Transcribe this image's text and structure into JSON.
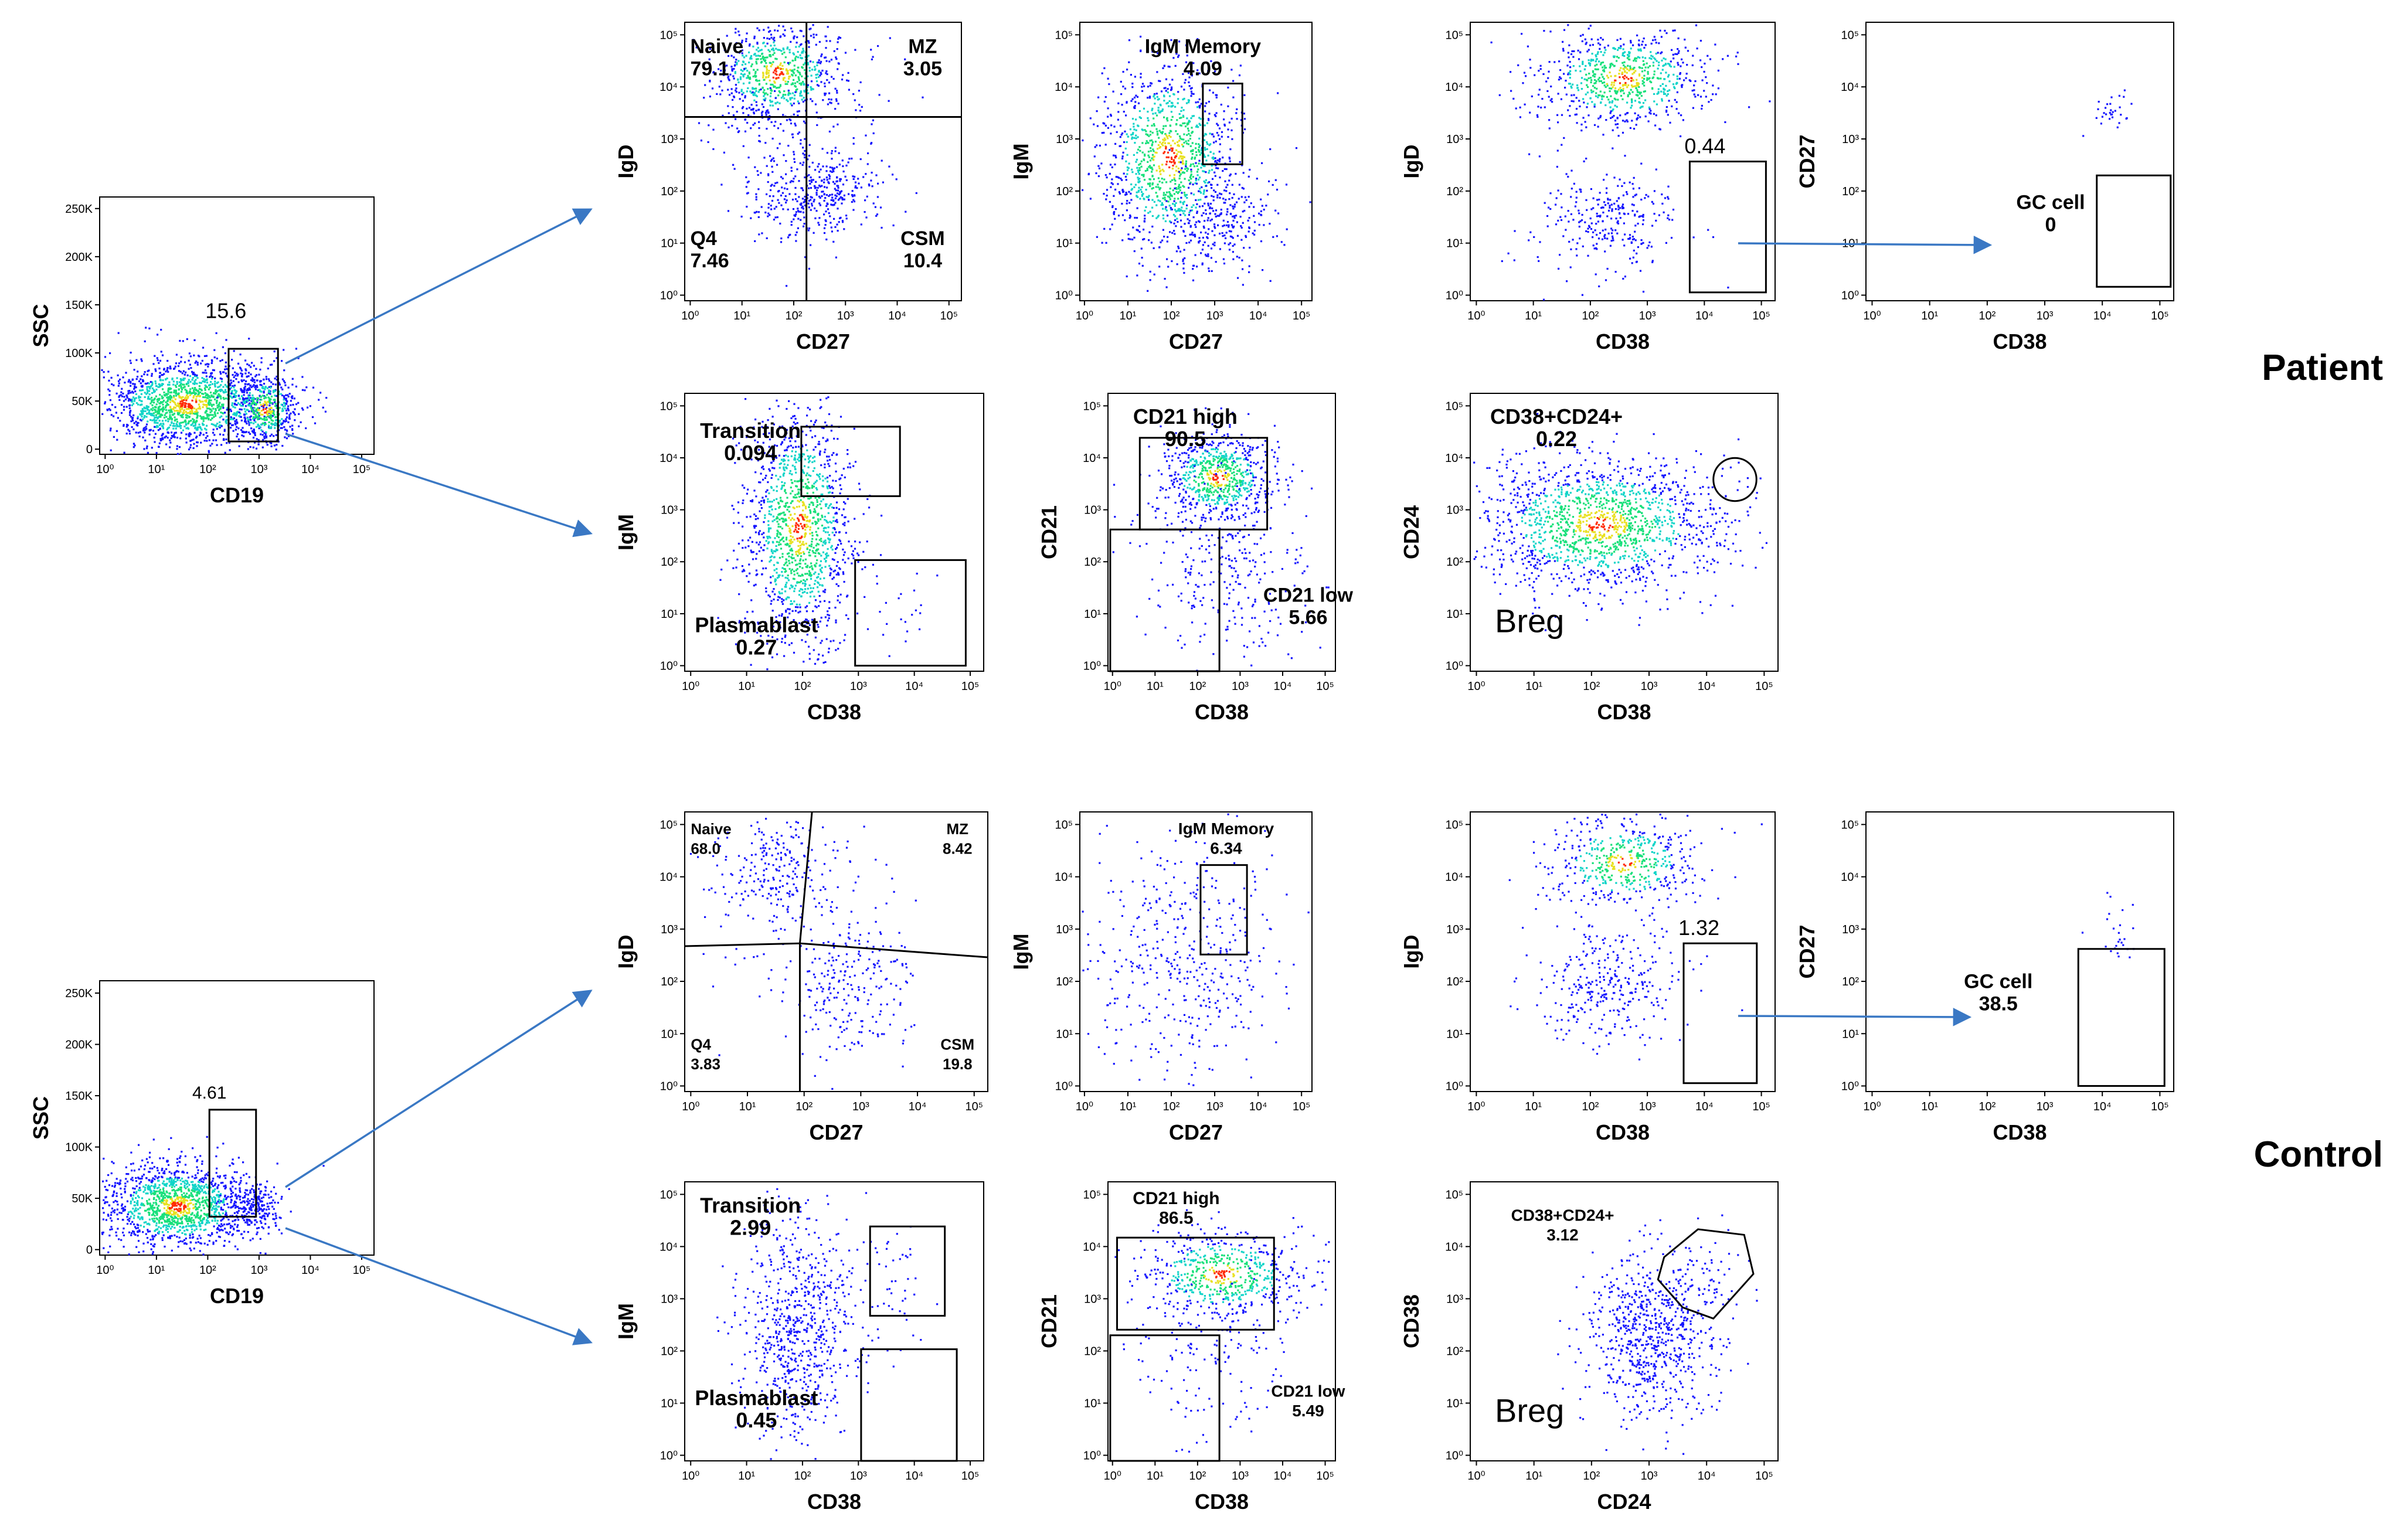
{
  "chart_data": {
    "type": "scatter",
    "title": "Flow cytometry B-cell subset gating: Patient vs Control",
    "groups": [
      {
        "name": "Patient"
      },
      {
        "name": "Control"
      }
    ],
    "colors": {
      "arrow": "#3a78c4",
      "gate": "#000000",
      "dots_low": "#1515ff",
      "dots_mid": "#10d4c8",
      "dots_high": "#ff2a00"
    },
    "log_ticks": [
      "10⁰",
      "10¹",
      "10²",
      "10³",
      "10⁴",
      "10⁵"
    ],
    "lin_ticks": [
      "0",
      "50K",
      "100K",
      "150K",
      "200K",
      "250K"
    ],
    "plots": [
      {
        "id": "p-cd19",
        "group": "Patient",
        "xlabel": "CD19",
        "ylabel": "SSC",
        "yscale": "linear",
        "gates": [
          {
            "label": "",
            "value": "15.6"
          }
        ]
      },
      {
        "id": "p-igd-cd27",
        "group": "Patient",
        "xlabel": "CD27",
        "ylabel": "IgD",
        "gates": [
          {
            "label": "Naive",
            "value": "79.1"
          },
          {
            "label": "MZ",
            "value": "3.05"
          },
          {
            "label": "Q4",
            "value": "7.46"
          },
          {
            "label": "CSM",
            "value": "10.4"
          }
        ]
      },
      {
        "id": "p-igm-cd27",
        "group": "Patient",
        "xlabel": "CD27",
        "ylabel": "IgM",
        "gates": [
          {
            "label": "IgM Memory",
            "value": "4.09"
          }
        ]
      },
      {
        "id": "p-igd-cd38",
        "group": "Patient",
        "xlabel": "CD38",
        "ylabel": "IgD",
        "gates": [
          {
            "label": "",
            "value": "0.44"
          }
        ]
      },
      {
        "id": "p-cd27-cd38",
        "group": "Patient",
        "xlabel": "CD38",
        "ylabel": "CD27",
        "gates": [
          {
            "label": "GC cell",
            "value": "0"
          }
        ]
      },
      {
        "id": "p-igm-cd38",
        "group": "Patient",
        "xlabel": "CD38",
        "ylabel": "IgM",
        "gates": [
          {
            "label": "Transition",
            "value": "0.094"
          },
          {
            "label": "Plasmablast",
            "value": "0.27"
          }
        ]
      },
      {
        "id": "p-cd21-cd38",
        "group": "Patient",
        "xlabel": "CD38",
        "ylabel": "CD21",
        "gates": [
          {
            "label": "CD21 high",
            "value": "90.5"
          },
          {
            "label": "CD21 low",
            "value": "5.66"
          }
        ]
      },
      {
        "id": "p-cd24-cd38",
        "group": "Patient",
        "xlabel": "CD38",
        "ylabel": "CD24",
        "gates": [
          {
            "label": "CD38+CD24+",
            "value": "0.22"
          },
          {
            "label": "Breg",
            "value": ""
          }
        ]
      },
      {
        "id": "c-cd19",
        "group": "Control",
        "xlabel": "CD19",
        "ylabel": "SSC",
        "yscale": "linear",
        "gates": [
          {
            "label": "",
            "value": "4.61"
          }
        ]
      },
      {
        "id": "c-igd-cd27",
        "group": "Control",
        "xlabel": "CD27",
        "ylabel": "IgD",
        "gates": [
          {
            "label": "Naive",
            "value": "68.0"
          },
          {
            "label": "MZ",
            "value": "8.42"
          },
          {
            "label": "Q4",
            "value": "3.83"
          },
          {
            "label": "CSM",
            "value": "19.8"
          }
        ]
      },
      {
        "id": "c-igm-cd27",
        "group": "Control",
        "xlabel": "CD27",
        "ylabel": "IgM",
        "gates": [
          {
            "label": "IgM Memory",
            "value": "6.34"
          }
        ]
      },
      {
        "id": "c-igd-cd38",
        "group": "Control",
        "xlabel": "CD38",
        "ylabel": "IgD",
        "gates": [
          {
            "label": "",
            "value": "1.32"
          }
        ]
      },
      {
        "id": "c-cd27-cd38",
        "group": "Control",
        "xlabel": "CD38",
        "ylabel": "CD27",
        "gates": [
          {
            "label": "GC cell",
            "value": "38.5"
          }
        ]
      },
      {
        "id": "c-igm-cd38",
        "group": "Control",
        "xlabel": "CD38",
        "ylabel": "IgM",
        "gates": [
          {
            "label": "Transition",
            "value": "2.99"
          },
          {
            "label": "Plasmablast",
            "value": "0.45"
          }
        ]
      },
      {
        "id": "c-cd21-cd38",
        "group": "Control",
        "xlabel": "CD38",
        "ylabel": "CD21",
        "gates": [
          {
            "label": "CD21 high",
            "value": "86.5"
          },
          {
            "label": "CD21 low",
            "value": "5.49"
          }
        ]
      },
      {
        "id": "c-cd38-cd24",
        "group": "Control",
        "xlabel": "CD24",
        "ylabel": "CD38",
        "gates": [
          {
            "label": "CD38+CD24+",
            "value": "3.12"
          },
          {
            "label": "Breg",
            "value": ""
          }
        ]
      }
    ]
  }
}
